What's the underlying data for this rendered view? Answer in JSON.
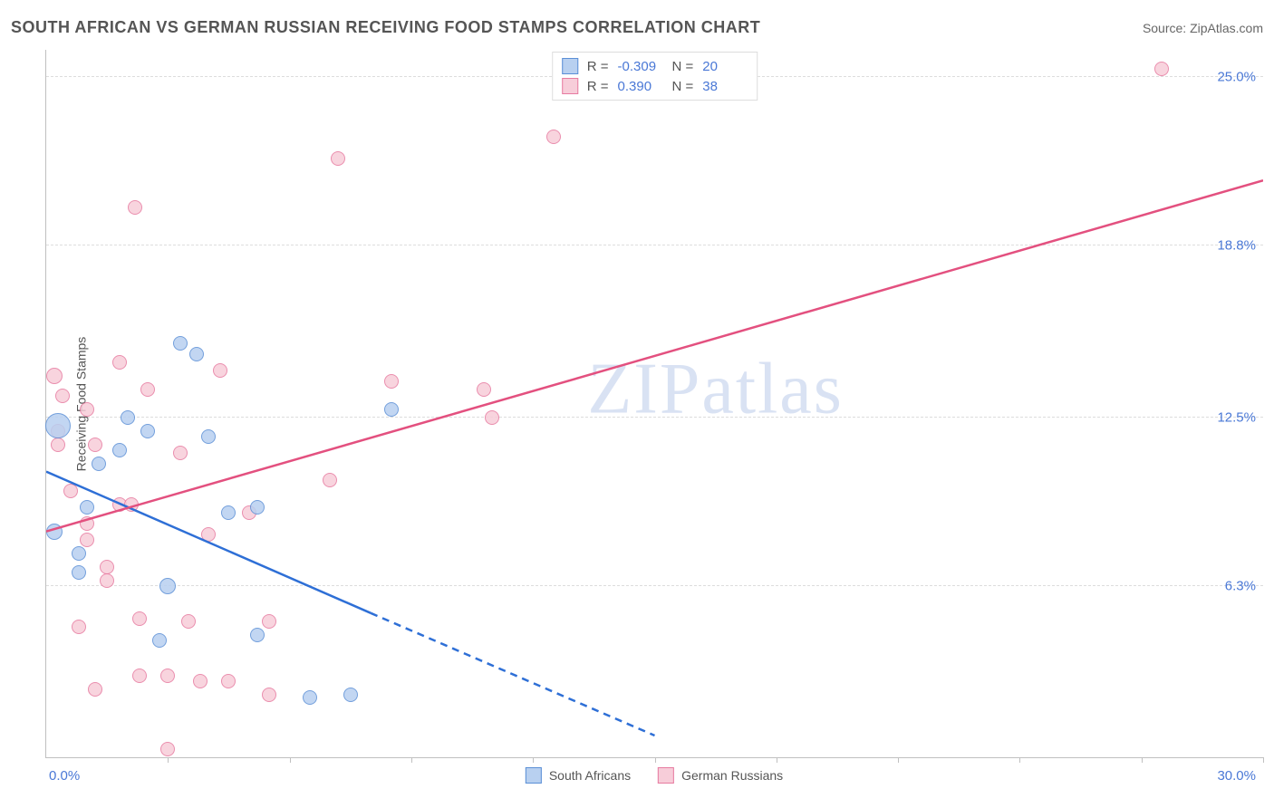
{
  "header": {
    "title": "SOUTH AFRICAN VS GERMAN RUSSIAN RECEIVING FOOD STAMPS CORRELATION CHART",
    "source_label": "Source:",
    "source_name": "ZipAtlas.com"
  },
  "chart": {
    "type": "scatter",
    "ylabel": "Receiving Food Stamps",
    "xlim": [
      0,
      30
    ],
    "ylim": [
      0,
      26
    ],
    "x_origin_label": "0.0%",
    "x_max_label": "30.0%",
    "y_ticks": [
      {
        "value": 6.3,
        "label": "6.3%"
      },
      {
        "value": 12.5,
        "label": "12.5%"
      },
      {
        "value": 18.8,
        "label": "18.8%"
      },
      {
        "value": 25.0,
        "label": "25.0%"
      }
    ],
    "x_tick_values": [
      0,
      3,
      6,
      9,
      12,
      15,
      18,
      21,
      24,
      27,
      30
    ],
    "grid_color": "#dddddd",
    "background_color": "#ffffff",
    "axis_color": "#c0c0c0",
    "watermark_prefix": "ZIP",
    "watermark_suffix": "atlas",
    "watermark_color": "#d9e2f3"
  },
  "series": {
    "south_africans": {
      "label": "South Africans",
      "fill": "#b8d0f0",
      "stroke": "#5b8fd6",
      "line_color": "#2e6fd6",
      "r_value": "-0.309",
      "n_value": "20",
      "trend": {
        "x1": 0,
        "y1": 10.5,
        "x2": 8,
        "y2": 5.3,
        "solid_end_x": 8,
        "dash_end_x": 15,
        "dash_end_y": 0.8
      },
      "points": [
        {
          "x": 0.3,
          "y": 12.2,
          "r": 14
        },
        {
          "x": 0.2,
          "y": 8.3,
          "r": 9
        },
        {
          "x": 0.8,
          "y": 7.5,
          "r": 8
        },
        {
          "x": 1.0,
          "y": 9.2,
          "r": 8
        },
        {
          "x": 1.3,
          "y": 10.8,
          "r": 8
        },
        {
          "x": 2.0,
          "y": 12.5,
          "r": 8
        },
        {
          "x": 2.5,
          "y": 12.0,
          "r": 8
        },
        {
          "x": 3.3,
          "y": 15.2,
          "r": 8
        },
        {
          "x": 3.7,
          "y": 14.8,
          "r": 8
        },
        {
          "x": 2.8,
          "y": 4.3,
          "r": 8
        },
        {
          "x": 3.0,
          "y": 6.3,
          "r": 9
        },
        {
          "x": 4.0,
          "y": 11.8,
          "r": 8
        },
        {
          "x": 4.5,
          "y": 9.0,
          "r": 8
        },
        {
          "x": 5.2,
          "y": 9.2,
          "r": 8
        },
        {
          "x": 5.2,
          "y": 4.5,
          "r": 8
        },
        {
          "x": 6.5,
          "y": 2.2,
          "r": 8
        },
        {
          "x": 7.5,
          "y": 2.3,
          "r": 8
        },
        {
          "x": 8.5,
          "y": 12.8,
          "r": 8
        },
        {
          "x": 1.8,
          "y": 11.3,
          "r": 8
        },
        {
          "x": 0.8,
          "y": 6.8,
          "r": 8
        }
      ]
    },
    "german_russians": {
      "label": "German Russians",
      "fill": "#f7cdd9",
      "stroke": "#e77ba0",
      "line_color": "#e3507f",
      "r_value": "0.390",
      "n_value": "38",
      "trend": {
        "x1": 0,
        "y1": 8.3,
        "x2": 30,
        "y2": 21.2
      },
      "points": [
        {
          "x": 0.2,
          "y": 14.0,
          "r": 9
        },
        {
          "x": 0.4,
          "y": 13.3,
          "r": 8
        },
        {
          "x": 0.3,
          "y": 12.0,
          "r": 8
        },
        {
          "x": 0.3,
          "y": 11.5,
          "r": 8
        },
        {
          "x": 1.2,
          "y": 11.5,
          "r": 8
        },
        {
          "x": 1.0,
          "y": 12.8,
          "r": 8
        },
        {
          "x": 1.0,
          "y": 8.6,
          "r": 8
        },
        {
          "x": 1.0,
          "y": 8.0,
          "r": 8
        },
        {
          "x": 1.8,
          "y": 9.3,
          "r": 8
        },
        {
          "x": 1.5,
          "y": 7.0,
          "r": 8
        },
        {
          "x": 1.5,
          "y": 6.5,
          "r": 8
        },
        {
          "x": 1.8,
          "y": 14.5,
          "r": 8
        },
        {
          "x": 2.1,
          "y": 9.3,
          "r": 8
        },
        {
          "x": 2.2,
          "y": 20.2,
          "r": 8
        },
        {
          "x": 2.3,
          "y": 5.1,
          "r": 8
        },
        {
          "x": 2.3,
          "y": 3.0,
          "r": 8
        },
        {
          "x": 2.5,
          "y": 13.5,
          "r": 8
        },
        {
          "x": 3.0,
          "y": 3.0,
          "r": 8
        },
        {
          "x": 3.0,
          "y": 0.3,
          "r": 8
        },
        {
          "x": 3.3,
          "y": 11.2,
          "r": 8
        },
        {
          "x": 3.5,
          "y": 5.0,
          "r": 8
        },
        {
          "x": 3.8,
          "y": 2.8,
          "r": 8
        },
        {
          "x": 4.5,
          "y": 2.8,
          "r": 8
        },
        {
          "x": 4.3,
          "y": 14.2,
          "r": 8
        },
        {
          "x": 5.0,
          "y": 9.0,
          "r": 8
        },
        {
          "x": 5.5,
          "y": 5.0,
          "r": 8
        },
        {
          "x": 5.5,
          "y": 2.3,
          "r": 8
        },
        {
          "x": 7.0,
          "y": 10.2,
          "r": 8
        },
        {
          "x": 7.2,
          "y": 22.0,
          "r": 8
        },
        {
          "x": 8.5,
          "y": 13.8,
          "r": 8
        },
        {
          "x": 10.8,
          "y": 13.5,
          "r": 8
        },
        {
          "x": 11.0,
          "y": 12.5,
          "r": 8
        },
        {
          "x": 12.5,
          "y": 22.8,
          "r": 8
        },
        {
          "x": 1.2,
          "y": 2.5,
          "r": 8
        },
        {
          "x": 0.8,
          "y": 4.8,
          "r": 8
        },
        {
          "x": 27.5,
          "y": 25.3,
          "r": 8
        },
        {
          "x": 4.0,
          "y": 8.2,
          "r": 8
        },
        {
          "x": 0.6,
          "y": 9.8,
          "r": 8
        }
      ]
    }
  },
  "stats_labels": {
    "r": "R =",
    "n": "N ="
  },
  "legend": {
    "items": [
      "south_africans",
      "german_russians"
    ]
  }
}
